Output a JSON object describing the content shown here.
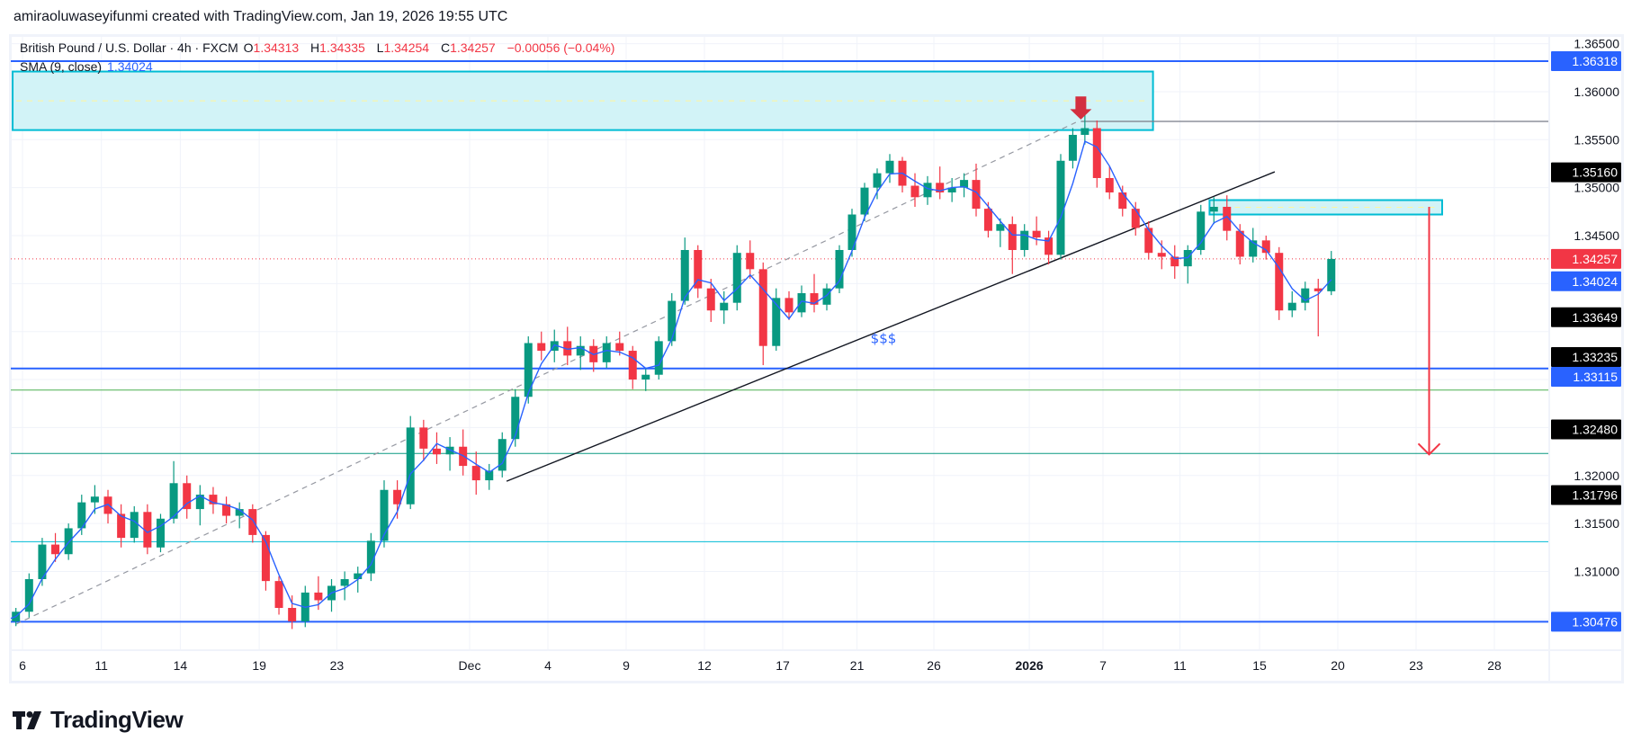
{
  "header": {
    "credit": "amiraoluwaseyifunmi created with TradingView.com, Jan 19, 2026 19:55 UTC"
  },
  "legend": {
    "symbol": "British Pound / U.S. Dollar · 4h · FXCM",
    "open_label": "O",
    "open": "1.34313",
    "high_label": "H",
    "high": "1.34335",
    "low_label": "L",
    "low": "1.34254",
    "close_label": "C",
    "close": "1.34257",
    "change": "−0.00056 (−0.04%)",
    "sma_label": "SMA (9, close)",
    "sma_value": "1.34024"
  },
  "branding": {
    "logo_text": "TradingView"
  },
  "colors": {
    "up": "#089981",
    "down": "#f23645",
    "sma": "#2962ff",
    "blue_level": "#2962ff",
    "cyan": "#00bcd4",
    "green": "#4caf50",
    "teal": "#089981",
    "gray": "#787b86",
    "zone_fill": "#d2f3f7",
    "label_black": "#000000",
    "current_price": "#f23645"
  },
  "chart_data": {
    "type": "candlestick",
    "title": "British Pound / U.S. Dollar · 4h · FXCM",
    "ylim": [
      1.3,
      1.3675
    ],
    "grid": true,
    "price_ticks": [
      "1.36500",
      "1.36000",
      "1.35500",
      "1.35000",
      "1.34500",
      "1.34000",
      "1.33500",
      "1.33000",
      "1.32500",
      "1.32000",
      "1.31500",
      "1.31000",
      "1.30500"
    ],
    "time_ticks": [
      {
        "label": "6",
        "date": "2025-11-06"
      },
      {
        "label": "11",
        "date": "2025-11-11"
      },
      {
        "label": "14",
        "date": "2025-11-14"
      },
      {
        "label": "19",
        "date": "2025-11-19"
      },
      {
        "label": "23",
        "date": "2025-11-23"
      },
      {
        "label": "Dec",
        "date": "2025-12-01"
      },
      {
        "label": "4",
        "date": "2025-12-04"
      },
      {
        "label": "9",
        "date": "2025-12-09"
      },
      {
        "label": "12",
        "date": "2025-12-12"
      },
      {
        "label": "17",
        "date": "2025-12-17"
      },
      {
        "label": "21",
        "date": "2025-12-21"
      },
      {
        "label": "26",
        "date": "2025-12-26"
      },
      {
        "label": "2026",
        "date": "2026-01-01",
        "bold": true
      },
      {
        "label": "7",
        "date": "2026-01-07"
      },
      {
        "label": "11",
        "date": "2026-01-11"
      },
      {
        "label": "15",
        "date": "2026-01-15"
      },
      {
        "label": "20",
        "date": "2026-01-20"
      },
      {
        "label": "23",
        "date": "2026-01-23"
      },
      {
        "label": "28",
        "date": "2026-01-28"
      }
    ],
    "axis_labels": [
      {
        "text": "1.36318",
        "bg": "#2962ff"
      },
      {
        "text": "1.35160",
        "bg": "#000000"
      },
      {
        "text": "1.34257",
        "bg": "#f23645"
      },
      {
        "text": "1.34024",
        "bg": "#2962ff"
      },
      {
        "text": "1.33649",
        "bg": "#000000"
      },
      {
        "text": "1.33235",
        "bg": "#000000"
      },
      {
        "text": "1.33115",
        "bg": "#2962ff"
      },
      {
        "text": "1.32480",
        "bg": "#000000"
      },
      {
        "text": "1.31796",
        "bg": "#000000"
      },
      {
        "text": "1.30476",
        "bg": "#2962ff"
      }
    ],
    "levels": [
      {
        "price": 1.36318,
        "color": "#2962ff",
        "width": 2
      },
      {
        "price": 1.33115,
        "color": "#2962ff",
        "width": 2
      },
      {
        "price": 1.3289,
        "color": "#4caf50",
        "width": 1
      },
      {
        "price": 1.3223,
        "color": "#089981",
        "width": 1
      },
      {
        "price": 1.3131,
        "color": "#00bcd4",
        "width": 1
      },
      {
        "price": 1.30476,
        "color": "#2962ff",
        "width": 2
      }
    ],
    "current_price": 1.34257,
    "zones": [
      {
        "from": "2025-11-05 15",
        "to": "2026-01-08 22",
        "top": 1.3621,
        "bottom": 1.356
      },
      {
        "from": "2026-01-13 02",
        "to": "2026-01-26",
        "top": 1.3487,
        "bottom": 1.3472
      }
    ],
    "ray": {
      "from": "2026-01-06 02",
      "price": 1.3569,
      "color": "#787b86"
    },
    "trendlines": [
      {
        "from": [
          "2025-11-05 18",
          1.3045
        ],
        "to": [
          "2026-01-05 21",
          1.3568
        ],
        "style": "dashed",
        "color": "#9598a1"
      },
      {
        "from": [
          "2025-12-02 10",
          1.3194
        ],
        "to": [
          "2026-01-15 14",
          1.35165
        ],
        "style": "solid",
        "color": "#131722"
      }
    ],
    "target_arrow": {
      "date": "2026-01-23 12",
      "from": 1.348,
      "to": 1.3222,
      "color": "#f23645"
    },
    "top_marker": {
      "date": "2026-01-06 02",
      "top": 1.3595,
      "bottom": 1.3571,
      "color": "#d32f3f"
    },
    "annotation": {
      "text": "$$$",
      "date": "2025-12-23",
      "price": 1.3338,
      "color": "#2962ff"
    },
    "candles": [
      {
        "date": "2025-11-05",
        "bars": [
          [
            1.306,
            1.3068,
            1.304,
            1.3048
          ],
          [
            1.3048,
            1.3062,
            1.3043,
            1.3058
          ]
        ]
      },
      {
        "date": "2025-11-06",
        "bars": [
          [
            1.3058,
            1.3098,
            1.3052,
            1.3092
          ],
          [
            1.3092,
            1.3135,
            1.3085,
            1.3128
          ]
        ]
      },
      {
        "date": "2025-11-07",
        "bars": [
          [
            1.3128,
            1.314,
            1.311,
            1.3118
          ],
          [
            1.3118,
            1.315,
            1.3112,
            1.3145
          ]
        ]
      },
      {
        "date": "2025-11-10",
        "bars": [
          [
            1.3145,
            1.318,
            1.3138,
            1.3172
          ],
          [
            1.3172,
            1.319,
            1.316,
            1.3178
          ]
        ]
      },
      {
        "date": "2025-11-11",
        "bars": [
          [
            1.3178,
            1.3185,
            1.315,
            1.316
          ],
          [
            1.316,
            1.317,
            1.3125,
            1.3135
          ]
        ]
      },
      {
        "date": "2025-11-12",
        "bars": [
          [
            1.3135,
            1.3168,
            1.313,
            1.3162
          ],
          [
            1.3162,
            1.317,
            1.3118,
            1.3125
          ]
        ]
      },
      {
        "date": "2025-11-13",
        "bars": [
          [
            1.3125,
            1.316,
            1.312,
            1.3155
          ],
          [
            1.3155,
            1.3215,
            1.315,
            1.3192
          ]
        ]
      },
      {
        "date": "2025-11-14",
        "bars": [
          [
            1.3192,
            1.32,
            1.3155,
            1.3165
          ],
          [
            1.3165,
            1.319,
            1.3148,
            1.318
          ]
        ]
      },
      {
        "date": "2025-11-17",
        "bars": [
          [
            1.318,
            1.3188,
            1.316,
            1.317
          ],
          [
            1.317,
            1.3178,
            1.315,
            1.3158
          ]
        ]
      },
      {
        "date": "2025-11-18",
        "bars": [
          [
            1.3158,
            1.3172,
            1.3145,
            1.3165
          ],
          [
            1.3165,
            1.317,
            1.313,
            1.3138
          ]
        ]
      },
      {
        "date": "2025-11-19",
        "bars": [
          [
            1.3138,
            1.3142,
            1.308,
            1.309
          ],
          [
            1.309,
            1.3095,
            1.3055,
            1.3062
          ]
        ]
      },
      {
        "date": "2025-11-20",
        "bars": [
          [
            1.3062,
            1.3075,
            1.304,
            1.3048
          ],
          [
            1.3048,
            1.3085,
            1.3042,
            1.3078
          ]
        ]
      },
      {
        "date": "2025-11-21",
        "bars": [
          [
            1.3078,
            1.3095,
            1.306,
            1.307
          ],
          [
            1.307,
            1.3092,
            1.3058,
            1.3085
          ]
        ]
      },
      {
        "date": "2025-11-24",
        "bars": [
          [
            1.3085,
            1.31,
            1.307,
            1.3092
          ],
          [
            1.3092,
            1.3105,
            1.3078,
            1.3098
          ]
        ]
      },
      {
        "date": "2025-11-25",
        "bars": [
          [
            1.3098,
            1.314,
            1.309,
            1.3132
          ],
          [
            1.3132,
            1.3195,
            1.3125,
            1.3185
          ]
        ]
      },
      {
        "date": "2025-11-26",
        "bars": [
          [
            1.3185,
            1.3195,
            1.3155,
            1.317
          ],
          [
            1.317,
            1.3262,
            1.3165,
            1.325
          ]
        ]
      },
      {
        "date": "2025-11-27",
        "bars": [
          [
            1.325,
            1.3258,
            1.3215,
            1.3228
          ],
          [
            1.3228,
            1.3245,
            1.3212,
            1.3222
          ]
        ]
      },
      {
        "date": "2025-11-28",
        "bars": [
          [
            1.3222,
            1.324,
            1.3205,
            1.323
          ],
          [
            1.323,
            1.3248,
            1.32,
            1.321
          ]
        ]
      },
      {
        "date": "2025-12-01",
        "bars": [
          [
            1.321,
            1.3225,
            1.318,
            1.3195
          ],
          [
            1.3195,
            1.3212,
            1.3185,
            1.3205
          ]
        ]
      },
      {
        "date": "2025-12-02",
        "bars": [
          [
            1.3205,
            1.3245,
            1.3198,
            1.3238
          ],
          [
            1.3238,
            1.329,
            1.323,
            1.3282
          ]
        ]
      },
      {
        "date": "2025-12-03",
        "bars": [
          [
            1.3282,
            1.3345,
            1.3275,
            1.3338
          ],
          [
            1.3338,
            1.335,
            1.332,
            1.333
          ]
        ]
      },
      {
        "date": "2025-12-04",
        "bars": [
          [
            1.333,
            1.3352,
            1.3318,
            1.334
          ],
          [
            1.334,
            1.3355,
            1.3315,
            1.3325
          ]
        ]
      },
      {
        "date": "2025-12-05",
        "bars": [
          [
            1.3325,
            1.3345,
            1.331,
            1.3335
          ],
          [
            1.3335,
            1.3342,
            1.3308,
            1.3318
          ]
        ]
      },
      {
        "date": "2025-12-08",
        "bars": [
          [
            1.3318,
            1.3345,
            1.3312,
            1.3338
          ],
          [
            1.3338,
            1.335,
            1.3325,
            1.333
          ]
        ]
      },
      {
        "date": "2025-12-09",
        "bars": [
          [
            1.333,
            1.3335,
            1.329,
            1.33
          ],
          [
            1.33,
            1.3312,
            1.3288,
            1.3305
          ]
        ]
      },
      {
        "date": "2025-12-10",
        "bars": [
          [
            1.3305,
            1.3345,
            1.33,
            1.334
          ],
          [
            1.334,
            1.339,
            1.3335,
            1.3382
          ]
        ]
      },
      {
        "date": "2025-12-11",
        "bars": [
          [
            1.3382,
            1.3448,
            1.3378,
            1.3435
          ],
          [
            1.3435,
            1.344,
            1.3385,
            1.3395
          ]
        ]
      },
      {
        "date": "2025-12-12",
        "bars": [
          [
            1.3395,
            1.3405,
            1.336,
            1.3372
          ],
          [
            1.3372,
            1.3392,
            1.3358,
            1.338
          ]
        ]
      },
      {
        "date": "2025-12-15",
        "bars": [
          [
            1.338,
            1.344,
            1.3372,
            1.3432
          ],
          [
            1.3432,
            1.3445,
            1.3405,
            1.3415
          ]
        ]
      },
      {
        "date": "2025-12-16",
        "bars": [
          [
            1.3415,
            1.3422,
            1.3315,
            1.3335
          ],
          [
            1.3335,
            1.3395,
            1.333,
            1.3385
          ]
        ]
      },
      {
        "date": "2025-12-17",
        "bars": [
          [
            1.3385,
            1.3392,
            1.3362,
            1.337
          ],
          [
            1.337,
            1.3398,
            1.3365,
            1.339
          ]
        ]
      },
      {
        "date": "2025-12-18",
        "bars": [
          [
            1.339,
            1.341,
            1.337,
            1.3378
          ],
          [
            1.3378,
            1.34,
            1.3372,
            1.3395
          ]
        ]
      },
      {
        "date": "2025-12-19",
        "bars": [
          [
            1.3395,
            1.344,
            1.339,
            1.3435
          ],
          [
            1.3435,
            1.3478,
            1.3428,
            1.3472
          ]
        ]
      },
      {
        "date": "2025-12-22",
        "bars": [
          [
            1.3472,
            1.3505,
            1.3465,
            1.35
          ],
          [
            1.35,
            1.352,
            1.3488,
            1.3515
          ]
        ]
      },
      {
        "date": "2025-12-23",
        "bars": [
          [
            1.3515,
            1.3535,
            1.3505,
            1.3528
          ],
          [
            1.3528,
            1.3532,
            1.3495,
            1.3502
          ]
        ]
      },
      {
        "date": "2025-12-24",
        "bars": [
          [
            1.3502,
            1.3515,
            1.348,
            1.349
          ],
          [
            1.349,
            1.3512,
            1.3482,
            1.3505
          ]
        ]
      },
      {
        "date": "2025-12-26",
        "bars": [
          [
            1.3505,
            1.3522,
            1.3488,
            1.3495
          ],
          [
            1.3495,
            1.351,
            1.3485,
            1.35
          ]
        ]
      },
      {
        "date": "2025-12-29",
        "bars": [
          [
            1.35,
            1.3515,
            1.349,
            1.3508
          ],
          [
            1.3508,
            1.3525,
            1.347,
            1.3478
          ]
        ]
      },
      {
        "date": "2025-12-30",
        "bars": [
          [
            1.3478,
            1.3485,
            1.3448,
            1.3455
          ],
          [
            1.3455,
            1.3468,
            1.3438,
            1.3462
          ]
        ]
      },
      {
        "date": "2025-12-31",
        "bars": [
          [
            1.3462,
            1.347,
            1.341,
            1.3435
          ],
          [
            1.3435,
            1.3462,
            1.3428,
            1.3455
          ]
        ]
      },
      {
        "date": "2026-01-02",
        "bars": [
          [
            1.3455,
            1.347,
            1.344,
            1.3448
          ],
          [
            1.3448,
            1.3455,
            1.342,
            1.343
          ]
        ]
      },
      {
        "date": "2026-01-05",
        "bars": [
          [
            1.343,
            1.3535,
            1.3425,
            1.3528
          ],
          [
            1.3528,
            1.3562,
            1.352,
            1.3555
          ]
        ]
      },
      {
        "date": "2026-01-06",
        "bars": [
          [
            1.3555,
            1.3578,
            1.3545,
            1.3562
          ],
          [
            1.3562,
            1.357,
            1.35,
            1.351
          ]
        ]
      },
      {
        "date": "2026-01-07",
        "bars": [
          [
            1.351,
            1.3522,
            1.3488,
            1.3495
          ],
          [
            1.3495,
            1.3502,
            1.347,
            1.3478
          ]
        ]
      },
      {
        "date": "2026-01-08",
        "bars": [
          [
            1.3478,
            1.3485,
            1.345,
            1.3458
          ],
          [
            1.3458,
            1.3465,
            1.3425,
            1.3432
          ]
        ]
      },
      {
        "date": "2026-01-09",
        "bars": [
          [
            1.3432,
            1.3445,
            1.3415,
            1.3428
          ],
          [
            1.3428,
            1.344,
            1.3405,
            1.3418
          ]
        ]
      },
      {
        "date": "2026-01-12",
        "bars": [
          [
            1.3418,
            1.344,
            1.34,
            1.3435
          ],
          [
            1.3435,
            1.3482,
            1.343,
            1.3475
          ]
        ]
      },
      {
        "date": "2026-01-13",
        "bars": [
          [
            1.3475,
            1.349,
            1.3462,
            1.348
          ],
          [
            1.348,
            1.3492,
            1.3445,
            1.3455
          ]
        ]
      },
      {
        "date": "2026-01-14",
        "bars": [
          [
            1.3455,
            1.3462,
            1.342,
            1.3428
          ],
          [
            1.3428,
            1.3458,
            1.3422,
            1.3445
          ]
        ]
      },
      {
        "date": "2026-01-15",
        "bars": [
          [
            1.3445,
            1.345,
            1.3425,
            1.3432
          ],
          [
            1.3432,
            1.3438,
            1.3362,
            1.3372
          ]
        ]
      },
      {
        "date": "2026-01-16",
        "bars": [
          [
            1.3372,
            1.3392,
            1.3365,
            1.338
          ],
          [
            1.338,
            1.3402,
            1.3372,
            1.3395
          ]
        ]
      },
      {
        "date": "2026-01-19",
        "bars": [
          [
            1.3395,
            1.3405,
            1.3345,
            1.3392
          ],
          [
            1.3392,
            1.3434,
            1.3388,
            1.34257
          ]
        ]
      }
    ]
  }
}
